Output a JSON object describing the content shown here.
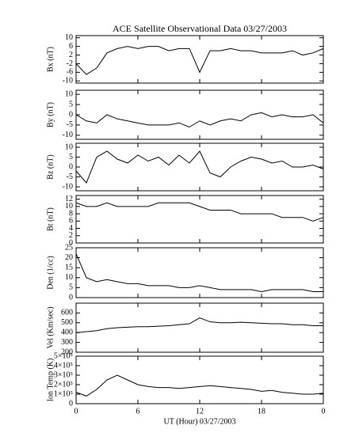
{
  "chart_data": [
    {
      "type": "line",
      "title": "ACE Satellite Observational Data  03/27/2003",
      "ylabel": "Bx (nT)",
      "ylim": [
        -11,
        11
      ],
      "yticks": [
        -10,
        -6,
        -2,
        2,
        6,
        10
      ],
      "color": "#000000",
      "x": [
        0,
        1,
        2,
        3,
        4,
        5,
        6,
        7,
        8,
        9,
        10,
        11,
        12,
        13,
        14,
        15,
        16,
        17,
        18,
        19,
        20,
        21,
        22,
        23,
        24
      ],
      "values": [
        -2,
        -7,
        -4,
        3,
        5,
        6,
        5,
        6,
        6,
        4,
        5,
        5,
        -6,
        4,
        4,
        5,
        4,
        4,
        3,
        3,
        3,
        4,
        2,
        3,
        5
      ]
    },
    {
      "type": "line",
      "ylabel": "By (nT)",
      "ylim": [
        -12,
        12
      ],
      "yticks": [
        -10,
        -5,
        0,
        5,
        10
      ],
      "color": "#000000",
      "x": [
        0,
        1,
        2,
        3,
        4,
        5,
        6,
        7,
        8,
        9,
        10,
        11,
        12,
        13,
        14,
        15,
        16,
        17,
        18,
        19,
        20,
        21,
        22,
        23,
        24
      ],
      "values": [
        0,
        -3,
        -4,
        0,
        -2,
        -3,
        -4,
        -5,
        -5,
        -5,
        -4,
        -6,
        -3,
        -5,
        -3,
        -2,
        -3,
        0,
        1,
        -1,
        0,
        -1,
        -1,
        0,
        -4
      ]
    },
    {
      "type": "line",
      "ylabel": "Bz (nT)",
      "ylim": [
        -12,
        12
      ],
      "yticks": [
        -10,
        -5,
        0,
        5,
        10
      ],
      "color": "#000000",
      "x": [
        0,
        1,
        2,
        3,
        4,
        5,
        6,
        7,
        8,
        9,
        10,
        11,
        12,
        13,
        14,
        15,
        16,
        17,
        18,
        19,
        20,
        21,
        22,
        23,
        24
      ],
      "values": [
        -2,
        -8,
        5,
        8,
        4,
        2,
        6,
        3,
        5,
        1,
        6,
        2,
        8,
        -3,
        -5,
        0,
        3,
        5,
        4,
        2,
        3,
        0,
        0,
        1,
        -1
      ]
    },
    {
      "type": "line",
      "ylabel": "Bt (nT)",
      "ylim": [
        0,
        13
      ],
      "yticks": [
        0,
        2,
        4,
        6,
        8,
        10,
        12
      ],
      "color": "#000000",
      "x": [
        0,
        1,
        2,
        3,
        4,
        5,
        6,
        7,
        8,
        9,
        10,
        11,
        12,
        13,
        14,
        15,
        16,
        17,
        18,
        19,
        20,
        21,
        22,
        23,
        24
      ],
      "values": [
        11,
        10,
        10,
        11,
        10,
        10,
        10,
        10,
        11,
        11,
        11,
        11,
        10,
        9,
        9,
        9,
        8,
        8,
        8,
        8,
        7,
        7,
        7,
        6,
        7
      ]
    },
    {
      "type": "line",
      "ylabel": "Den (1/cc)",
      "ylim": [
        0,
        25
      ],
      "yticks": [
        0,
        5,
        10,
        15,
        20,
        25
      ],
      "color": "#000000",
      "x": [
        0,
        1,
        2,
        3,
        4,
        5,
        6,
        7,
        8,
        9,
        10,
        11,
        12,
        13,
        14,
        15,
        16,
        17,
        18,
        19,
        20,
        21,
        22,
        23,
        24
      ],
      "values": [
        22,
        10,
        8,
        9,
        8,
        7,
        7,
        6,
        6,
        6,
        5,
        5,
        6,
        5,
        4,
        4,
        4,
        4,
        3,
        4,
        4,
        4,
        4,
        3,
        3
      ]
    },
    {
      "type": "line",
      "ylabel": "Vel (Km/sec)",
      "ylim": [
        200,
        700
      ],
      "yticks": [
        200,
        300,
        400,
        500,
        600
      ],
      "color": "#000000",
      "x": [
        0,
        1,
        2,
        3,
        4,
        5,
        6,
        7,
        8,
        9,
        10,
        11,
        12,
        13,
        14,
        15,
        16,
        17,
        18,
        19,
        20,
        21,
        22,
        23,
        24
      ],
      "values": [
        400,
        410,
        420,
        440,
        450,
        455,
        460,
        460,
        465,
        470,
        480,
        490,
        550,
        510,
        500,
        500,
        505,
        500,
        495,
        490,
        490,
        480,
        480,
        470,
        470
      ]
    },
    {
      "type": "line",
      "ylabel": "Ion Temp (K)",
      "ylim": [
        0,
        500000
      ],
      "yticks": [
        0,
        {
          "value": 100000,
          "label": "1×10⁵"
        },
        {
          "value": 200000,
          "label": "2×10⁵"
        },
        {
          "value": 300000,
          "label": "3×10⁵"
        },
        {
          "value": 400000,
          "label": "4×10⁵"
        },
        {
          "value": 500000,
          "label": "5×10⁵"
        }
      ],
      "color": "#000000",
      "xlabel": "UT (Hour)  03/27/2003",
      "xlim": [
        0,
        24
      ],
      "xticks": [
        0,
        6,
        12,
        18,
        {
          "value": 24,
          "label": "0"
        }
      ],
      "x": [
        0,
        1,
        2,
        3,
        4,
        5,
        6,
        7,
        8,
        9,
        10,
        11,
        12,
        13,
        14,
        15,
        16,
        17,
        18,
        19,
        20,
        21,
        22,
        23,
        24
      ],
      "values": [
        120000,
        80000,
        150000,
        250000,
        300000,
        250000,
        200000,
        180000,
        170000,
        170000,
        160000,
        170000,
        180000,
        190000,
        180000,
        170000,
        160000,
        150000,
        130000,
        140000,
        120000,
        110000,
        100000,
        100000,
        110000
      ]
    }
  ]
}
